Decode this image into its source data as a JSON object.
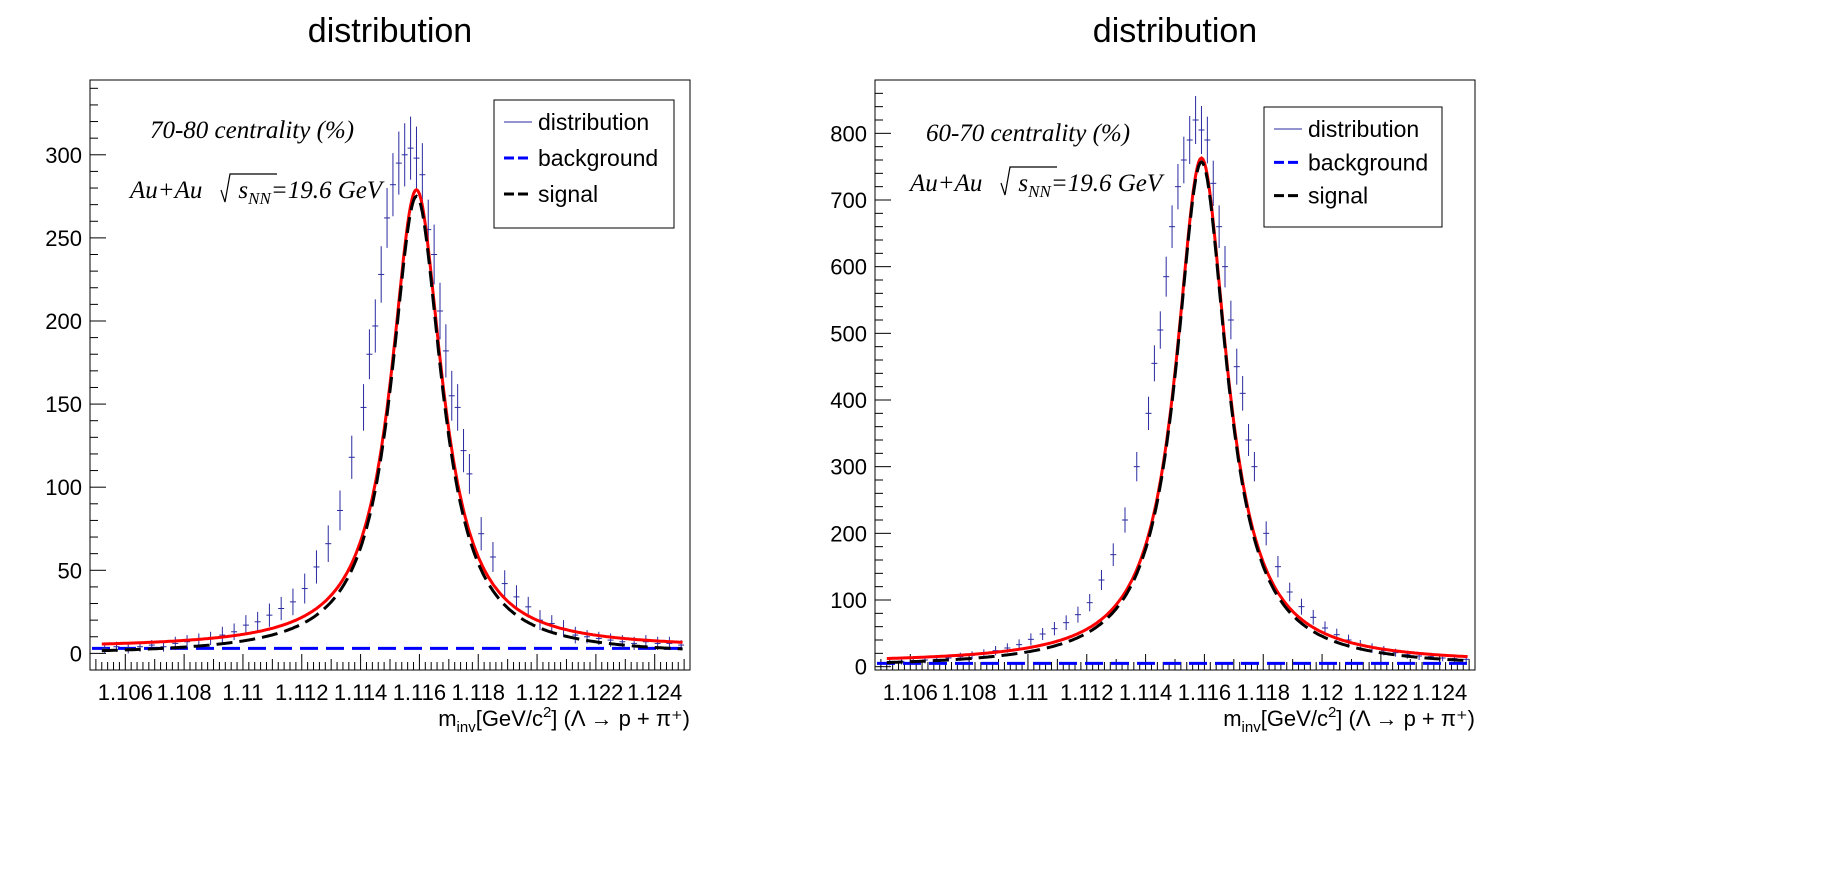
{
  "chart_data": [
    {
      "type": "scatter",
      "title": "distribution",
      "annotation_centrality": "70-80 centrality (%)",
      "annotation_system_prefix": "Au+Au",
      "annotation_sqrt_s": "s",
      "annotation_sqrt_sub": "NN",
      "annotation_energy": "=19.6 GeV",
      "xlabel_m": "m",
      "xlabel_sub": "inv",
      "xlabel_unit": "[GeV/c",
      "xlabel_sup": "2",
      "xlabel_close": "]",
      "xlabel_decay": "(Λ → p + π⁺)",
      "xlim": [
        1.1048,
        1.1252
      ],
      "ylim": [
        -10,
        345
      ],
      "x_ticks": [
        1.106,
        1.108,
        1.11,
        1.112,
        1.114,
        1.116,
        1.118,
        1.12,
        1.122,
        1.124
      ],
      "x_tick_labels": [
        "1.106",
        "1.108",
        "1.11",
        "1.112",
        "1.114",
        "1.116",
        "1.118",
        "1.12",
        "1.122",
        "1.124"
      ],
      "y_ticks": [
        0,
        50,
        100,
        150,
        200,
        250,
        300
      ],
      "y_tick_labels": [
        "0",
        "50",
        "100",
        "150",
        "200",
        "250",
        "300"
      ],
      "legend_position": "top-right",
      "legend": [
        {
          "label": "distribution",
          "style": "thin-line",
          "color": "#2a2aa0"
        },
        {
          "label": "background",
          "style": "dashed",
          "color": "#0000ff"
        },
        {
          "label": "signal",
          "style": "dashed",
          "color": "#000000"
        }
      ],
      "model": {
        "peak_x": 1.1159,
        "peak_y": 276,
        "width": 0.00105,
        "background": 3
      },
      "series": [
        {
          "name": "distribution",
          "kind": "points",
          "x": [
            1.1053,
            1.1057,
            1.1061,
            1.1065,
            1.1069,
            1.1073,
            1.1077,
            1.1081,
            1.1085,
            1.1089,
            1.1093,
            1.1097,
            1.1101,
            1.1105,
            1.1109,
            1.1113,
            1.1117,
            1.1121,
            1.1125,
            1.1129,
            1.1133,
            1.1137,
            1.1141,
            1.1143,
            1.1145,
            1.1147,
            1.1149,
            1.1151,
            1.1153,
            1.1155,
            1.1157,
            1.1159,
            1.1161,
            1.1163,
            1.1165,
            1.1167,
            1.1169,
            1.1171,
            1.1173,
            1.1175,
            1.1177,
            1.1181,
            1.1185,
            1.1189,
            1.1193,
            1.1197,
            1.1201,
            1.1205,
            1.1209,
            1.1213,
            1.1217,
            1.1221,
            1.1225,
            1.1229,
            1.1233,
            1.1237,
            1.1241,
            1.1245,
            1.1249
          ],
          "y": [
            3,
            4,
            3,
            4,
            5,
            4,
            6,
            7,
            8,
            9,
            11,
            13,
            17,
            19,
            23,
            27,
            31,
            39,
            52,
            66,
            86,
            118,
            148,
            180,
            197,
            228,
            262,
            282,
            295,
            300,
            304,
            298,
            288,
            255,
            240,
            206,
            182,
            155,
            148,
            122,
            108,
            72,
            58,
            42,
            34,
            28,
            20,
            18,
            15,
            11,
            10,
            9,
            8,
            7,
            6,
            7,
            6,
            6,
            5
          ],
          "yerr": [
            3,
            3,
            3,
            3,
            3,
            3,
            4,
            4,
            4,
            4,
            5,
            5,
            6,
            6,
            7,
            7,
            8,
            9,
            10,
            11,
            12,
            13,
            14,
            15,
            16,
            17,
            18,
            19,
            19,
            19,
            19,
            19,
            19,
            18,
            18,
            17,
            16,
            15,
            14,
            13,
            12,
            10,
            9,
            8,
            7,
            6,
            6,
            5,
            5,
            5,
            4,
            4,
            4,
            4,
            4,
            4,
            4,
            4,
            3
          ]
        },
        {
          "name": "background",
          "kind": "dashed-line",
          "y_const": 3
        },
        {
          "name": "signal",
          "kind": "dashed-line"
        },
        {
          "name": "fit",
          "kind": "solid-line",
          "color": "#ff0000"
        }
      ]
    },
    {
      "type": "scatter",
      "title": "distribution",
      "annotation_centrality": "60-70 centrality (%)",
      "annotation_system_prefix": "Au+Au",
      "annotation_sqrt_s": "s",
      "annotation_sqrt_sub": "NN",
      "annotation_energy": "=19.6 GeV",
      "xlabel_m": "m",
      "xlabel_sub": "inv",
      "xlabel_unit": "[GeV/c",
      "xlabel_sup": "2",
      "xlabel_close": "]",
      "xlabel_decay": "(Λ → p + π⁺)",
      "xlim": [
        1.1048,
        1.1252
      ],
      "ylim": [
        -5,
        880
      ],
      "x_ticks": [
        1.106,
        1.108,
        1.11,
        1.112,
        1.114,
        1.116,
        1.118,
        1.12,
        1.122,
        1.124
      ],
      "x_tick_labels": [
        "1.106",
        "1.108",
        "1.11",
        "1.112",
        "1.114",
        "1.116",
        "1.118",
        "1.12",
        "1.122",
        "1.124"
      ],
      "y_ticks": [
        0,
        100,
        200,
        300,
        400,
        500,
        600,
        700,
        800
      ],
      "y_tick_labels": [
        "0",
        "100",
        "200",
        "300",
        "400",
        "500",
        "600",
        "700",
        "800"
      ],
      "legend_position": "top-right",
      "legend": [
        {
          "label": "distribution",
          "style": "thin-line",
          "color": "#2a2aa0"
        },
        {
          "label": "background",
          "style": "dashed",
          "color": "#0000ff"
        },
        {
          "label": "signal",
          "style": "dashed",
          "color": "#000000"
        }
      ],
      "model": {
        "peak_x": 1.1159,
        "peak_y": 758,
        "width": 0.00105,
        "background": 5
      },
      "series": [
        {
          "name": "distribution",
          "kind": "points",
          "x": [
            1.1053,
            1.1057,
            1.1061,
            1.1065,
            1.1069,
            1.1073,
            1.1077,
            1.1081,
            1.1085,
            1.1089,
            1.1093,
            1.1097,
            1.1101,
            1.1105,
            1.1109,
            1.1113,
            1.1117,
            1.1121,
            1.1125,
            1.1129,
            1.1133,
            1.1137,
            1.1141,
            1.1143,
            1.1145,
            1.1147,
            1.1149,
            1.1151,
            1.1153,
            1.1155,
            1.1157,
            1.1159,
            1.1161,
            1.1163,
            1.1165,
            1.1167,
            1.1169,
            1.1171,
            1.1173,
            1.1175,
            1.1177,
            1.1181,
            1.1185,
            1.1189,
            1.1193,
            1.1197,
            1.1201,
            1.1205,
            1.1209,
            1.1213,
            1.1217,
            1.1221,
            1.1225,
            1.1229,
            1.1233,
            1.1237,
            1.1241,
            1.1245,
            1.1249
          ],
          "y": [
            7,
            8,
            9,
            10,
            11,
            13,
            15,
            17,
            20,
            24,
            28,
            33,
            41,
            49,
            57,
            66,
            78,
            96,
            130,
            168,
            220,
            300,
            380,
            455,
            505,
            585,
            660,
            720,
            760,
            790,
            820,
            805,
            790,
            725,
            660,
            600,
            520,
            450,
            410,
            340,
            300,
            200,
            150,
            112,
            90,
            74,
            58,
            48,
            40,
            32,
            28,
            24,
            21,
            18,
            16,
            15,
            13,
            12,
            11
          ],
          "yerr": [
            5,
            5,
            5,
            5,
            5,
            5,
            6,
            6,
            6,
            7,
            7,
            8,
            9,
            9,
            10,
            11,
            12,
            13,
            15,
            17,
            19,
            22,
            25,
            27,
            28,
            30,
            32,
            34,
            35,
            36,
            36,
            36,
            35,
            34,
            32,
            31,
            29,
            27,
            26,
            24,
            22,
            18,
            16,
            14,
            12,
            11,
            10,
            9,
            8,
            8,
            7,
            7,
            6,
            6,
            6,
            5,
            5,
            5,
            5
          ]
        },
        {
          "name": "background",
          "kind": "dashed-line",
          "y_const": 5
        },
        {
          "name": "signal",
          "kind": "dashed-line"
        },
        {
          "name": "fit",
          "kind": "solid-line",
          "color": "#ff0000"
        }
      ]
    }
  ]
}
